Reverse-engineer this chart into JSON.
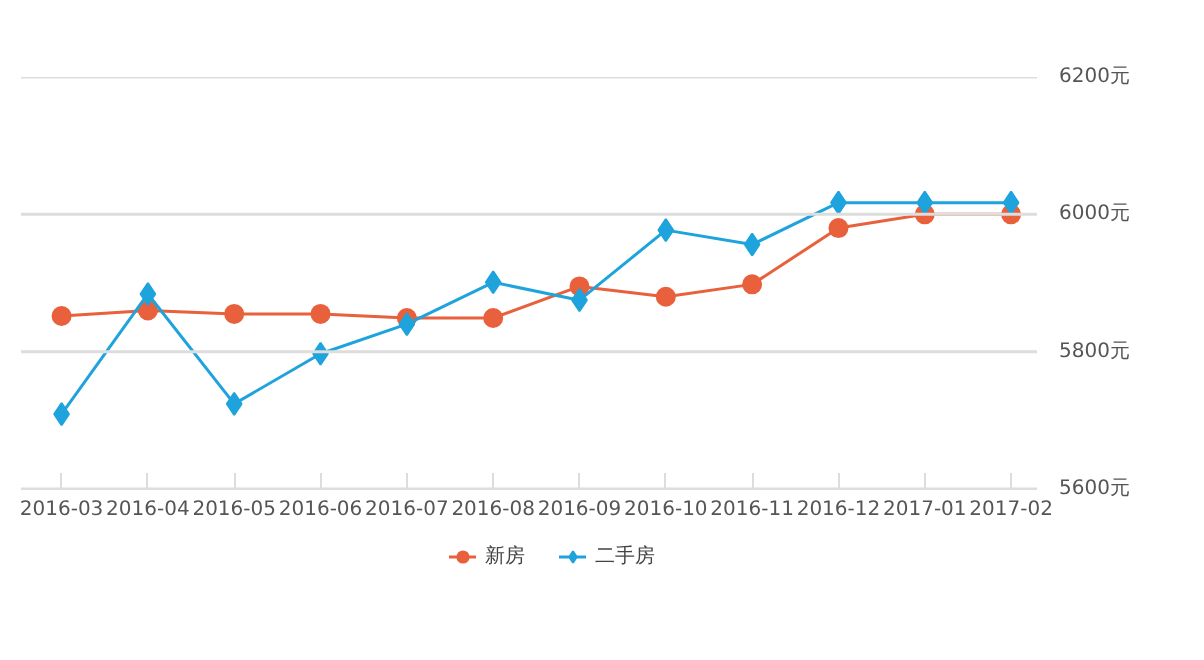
{
  "chart_data": {
    "type": "line",
    "categories": [
      "2016-03",
      "2016-04",
      "2016-05",
      "2016-06",
      "2016-07",
      "2016-08",
      "2016-09",
      "2016-10",
      "2016-11",
      "2016-12",
      "2017-01",
      "2017-02"
    ],
    "series": [
      {
        "name": "新房",
        "color": "#e8603c",
        "marker": "circle",
        "values": [
          5852,
          5860,
          5855,
          5855,
          5849,
          5849,
          5895,
          5880,
          5898,
          5980,
          6000,
          6000
        ]
      },
      {
        "name": "二手房",
        "color": "#1fa3dc",
        "marker": "diamond",
        "values": [
          5709,
          5884,
          5724,
          5797,
          5840,
          5901,
          5875,
          5977,
          5956,
          6017,
          6017,
          6017
        ]
      }
    ],
    "ylim": [
      5600,
      6200
    ],
    "yticks": [
      {
        "value": 5600,
        "label": "5600元"
      },
      {
        "value": 5800,
        "label": "5800元"
      },
      {
        "value": 6000,
        "label": "6000元"
      },
      {
        "value": 6200,
        "label": "6200元"
      }
    ],
    "grid": "y",
    "legend": "bottom",
    "line_style": "solid"
  }
}
